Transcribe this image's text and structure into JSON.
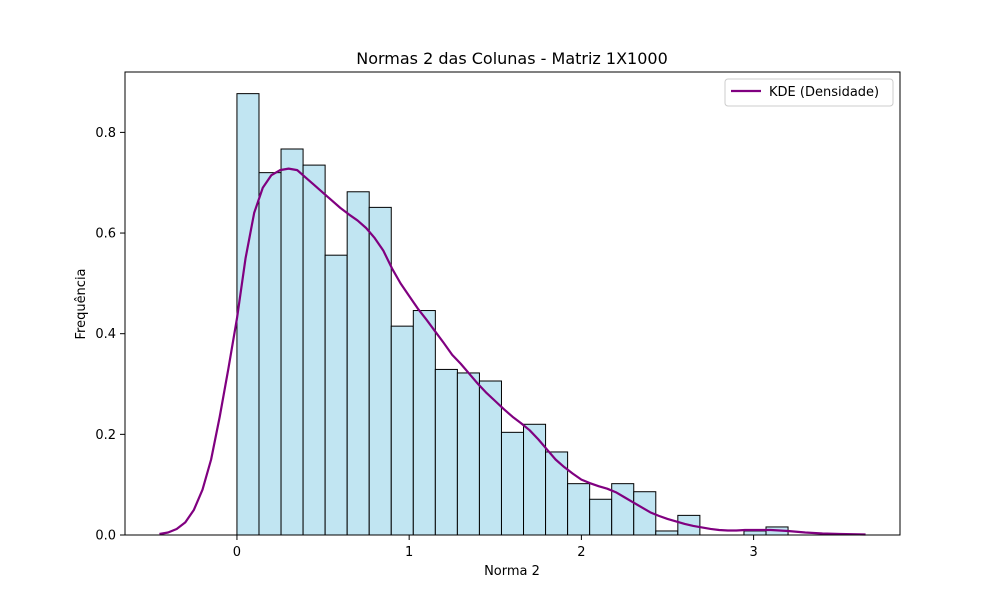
{
  "chart_data": {
    "type": "bar",
    "title": "Normas 2 das Colunas - Matriz 1X1000",
    "xlabel": "Norma 2",
    "ylabel": "Frequência",
    "xlim": [
      -0.65,
      3.85
    ],
    "ylim": [
      0,
      0.92
    ],
    "x_ticks": [
      0,
      1,
      2,
      3
    ],
    "y_ticks": [
      0.0,
      0.2,
      0.4,
      0.6,
      0.8
    ],
    "y_tick_labels": [
      "0.0",
      "0.2",
      "0.4",
      "0.6",
      "0.8"
    ],
    "grid": false,
    "legend_position": "top-right",
    "bin_width": 0.128,
    "bins": [
      {
        "x0": 0.0,
        "value": 0.877
      },
      {
        "x0": 0.128,
        "value": 0.72
      },
      {
        "x0": 0.256,
        "value": 0.767
      },
      {
        "x0": 0.384,
        "value": 0.735
      },
      {
        "x0": 0.512,
        "value": 0.556
      },
      {
        "x0": 0.64,
        "value": 0.682
      },
      {
        "x0": 0.768,
        "value": 0.651
      },
      {
        "x0": 0.896,
        "value": 0.415
      },
      {
        "x0": 1.024,
        "value": 0.446
      },
      {
        "x0": 1.152,
        "value": 0.329
      },
      {
        "x0": 1.28,
        "value": 0.322
      },
      {
        "x0": 1.408,
        "value": 0.306
      },
      {
        "x0": 1.536,
        "value": 0.204
      },
      {
        "x0": 1.664,
        "value": 0.22
      },
      {
        "x0": 1.792,
        "value": 0.165
      },
      {
        "x0": 1.92,
        "value": 0.102
      },
      {
        "x0": 2.048,
        "value": 0.071
      },
      {
        "x0": 2.176,
        "value": 0.102
      },
      {
        "x0": 2.304,
        "value": 0.086
      },
      {
        "x0": 2.432,
        "value": 0.008
      },
      {
        "x0": 2.56,
        "value": 0.039
      },
      {
        "x0": 2.688,
        "value": 0.0
      },
      {
        "x0": 2.816,
        "value": 0.0
      },
      {
        "x0": 2.944,
        "value": 0.008
      },
      {
        "x0": 3.072,
        "value": 0.016
      }
    ],
    "kde": {
      "name": "KDE (Densidade)",
      "x": [
        -0.45,
        -0.4,
        -0.35,
        -0.3,
        -0.25,
        -0.2,
        -0.15,
        -0.1,
        -0.05,
        0.0,
        0.05,
        0.1,
        0.15,
        0.2,
        0.25,
        0.3,
        0.35,
        0.4,
        0.45,
        0.5,
        0.55,
        0.6,
        0.65,
        0.7,
        0.75,
        0.8,
        0.85,
        0.9,
        0.95,
        1.0,
        1.05,
        1.1,
        1.15,
        1.2,
        1.25,
        1.3,
        1.35,
        1.4,
        1.45,
        1.5,
        1.55,
        1.6,
        1.65,
        1.7,
        1.75,
        1.8,
        1.85,
        1.9,
        1.95,
        2.0,
        2.05,
        2.1,
        2.15,
        2.2,
        2.25,
        2.3,
        2.35,
        2.4,
        2.45,
        2.5,
        2.55,
        2.6,
        2.65,
        2.7,
        2.75,
        2.8,
        2.85,
        2.9,
        2.95,
        3.0,
        3.05,
        3.1,
        3.15,
        3.2,
        3.3,
        3.4,
        3.5,
        3.65
      ],
      "y": [
        0.002,
        0.005,
        0.012,
        0.025,
        0.05,
        0.09,
        0.15,
        0.235,
        0.33,
        0.43,
        0.55,
        0.64,
        0.69,
        0.715,
        0.725,
        0.728,
        0.725,
        0.71,
        0.695,
        0.68,
        0.665,
        0.65,
        0.637,
        0.625,
        0.61,
        0.59,
        0.565,
        0.53,
        0.5,
        0.475,
        0.45,
        0.428,
        0.405,
        0.382,
        0.358,
        0.34,
        0.32,
        0.3,
        0.282,
        0.266,
        0.25,
        0.235,
        0.222,
        0.208,
        0.19,
        0.17,
        0.15,
        0.135,
        0.122,
        0.11,
        0.103,
        0.097,
        0.092,
        0.085,
        0.075,
        0.065,
        0.055,
        0.045,
        0.038,
        0.032,
        0.027,
        0.022,
        0.018,
        0.015,
        0.012,
        0.01,
        0.009,
        0.009,
        0.01,
        0.01,
        0.01,
        0.01,
        0.009,
        0.008,
        0.005,
        0.003,
        0.002,
        0.001
      ]
    },
    "colors": {
      "bar_fill": "#c1e5f2",
      "bar_edge": "#000000",
      "kde_line": "#800080"
    }
  }
}
